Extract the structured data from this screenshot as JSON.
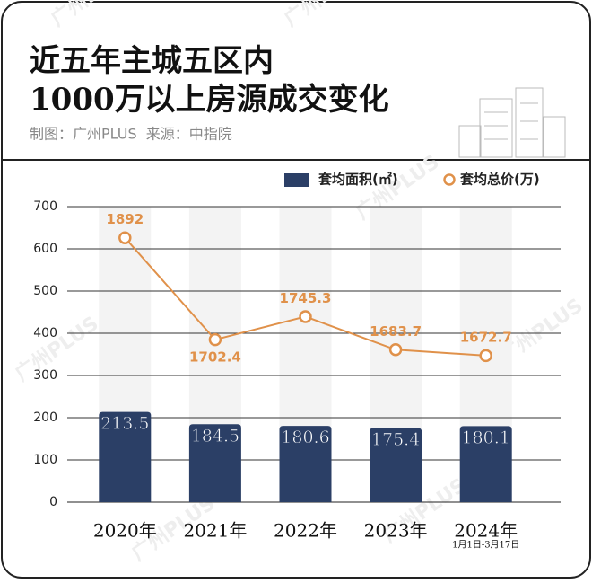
{
  "chart_data": {
    "type": "bar-line",
    "title": [
      "近五年主城五区内",
      "1000万以上房源成交变化"
    ],
    "subtitle": "制图：广州PLUS  来源：中指院",
    "watermark": "广州PLUS",
    "categories": [
      "2020年",
      "2021年",
      "2022年",
      "2023年",
      "2024年"
    ],
    "annotations": [
      "1月1日-3月17日"
    ],
    "series": [
      {
        "name": "套均面积(㎡)",
        "color": "#2b3f66",
        "type": "bar",
        "values": [
          213.5,
          184.5,
          180.6,
          175.4,
          180.1
        ]
      },
      {
        "name": "套均总价(万)",
        "color": "#e0914a",
        "type": "line",
        "axis": "y2",
        "values": [
          1892,
          1702.4,
          1745.3,
          1683.7,
          1672.7
        ]
      }
    ],
    "ylim": [
      0,
      700
    ],
    "yticks": [
      0,
      100,
      200,
      300,
      400,
      500,
      600,
      700
    ],
    "y2lim": [
      1400,
      1950
    ],
    "grid": true,
    "legend": "top-right"
  }
}
